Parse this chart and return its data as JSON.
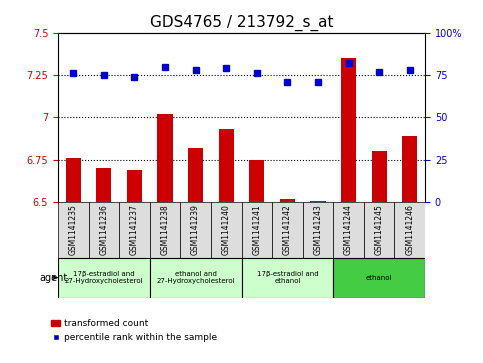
{
  "title": "GDS4765 / 213792_s_at",
  "samples": [
    "GSM1141235",
    "GSM1141236",
    "GSM1141237",
    "GSM1141238",
    "GSM1141239",
    "GSM1141240",
    "GSM1141241",
    "GSM1141242",
    "GSM1141243",
    "GSM1141244",
    "GSM1141245",
    "GSM1141246"
  ],
  "transformed_count": [
    6.76,
    6.7,
    6.69,
    7.02,
    6.82,
    6.93,
    6.75,
    6.52,
    6.51,
    7.35,
    6.8,
    6.89
  ],
  "percentile_rank": [
    76,
    75,
    74,
    80,
    78,
    79,
    76,
    71,
    71,
    82,
    77,
    78
  ],
  "bar_color": "#cc0000",
  "dot_color": "#0000cc",
  "ylim_left": [
    6.5,
    7.5
  ],
  "ylim_right": [
    0,
    100
  ],
  "yticks_left": [
    6.5,
    6.75,
    7.0,
    7.25,
    7.5
  ],
  "ytick_labels_left": [
    "6.5",
    "6.75",
    "7",
    "7.25",
    "7.5"
  ],
  "yticks_right": [
    0,
    25,
    50,
    75,
    100
  ],
  "ytick_labels_right": [
    "0",
    "25",
    "50",
    "75",
    "100%"
  ],
  "hlines": [
    6.75,
    7.0,
    7.25
  ],
  "agent_groups": [
    {
      "label": "17β-estradiol and\n27-Hydroxycholesterol",
      "start": 0,
      "end": 3,
      "color": "#ccffcc"
    },
    {
      "label": "ethanol and\n27-Hydroxycholesterol",
      "start": 3,
      "end": 6,
      "color": "#ccffcc"
    },
    {
      "label": "17β-estradiol and\nethanol",
      "start": 6,
      "end": 9,
      "color": "#ccffcc"
    },
    {
      "label": "ethanol",
      "start": 9,
      "end": 12,
      "color": "#44cc44"
    }
  ],
  "agent_label": "agent",
  "legend_bar_label": "transformed count",
  "legend_dot_label": "percentile rank within the sample",
  "title_fontsize": 11,
  "tick_fontsize": 7,
  "label_fontsize": 7.5
}
